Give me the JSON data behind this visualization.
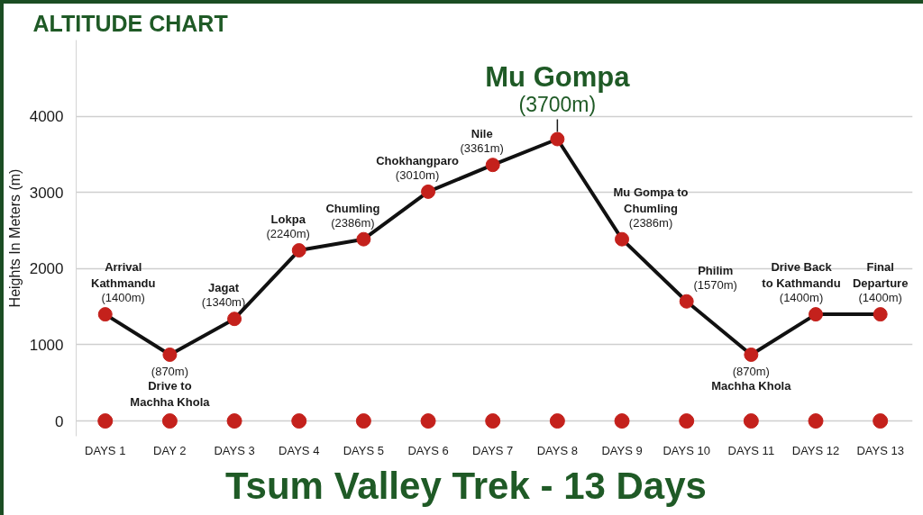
{
  "chart_data": {
    "type": "line",
    "title": "ALTITUDE CHART",
    "subtitle": "Tsum Valley Trek - 13 Days",
    "ylabel": "Heights In Meters (m)",
    "categories": [
      "DAYS 1",
      "DAY 2",
      "DAYS 3",
      "DAYS 4",
      "DAYS 5",
      "DAYS 6",
      "DAYS 7",
      "DAYS 8",
      "DAYS 9",
      "DAYS 10",
      "DAYS 11",
      "DAYS 12",
      "DAYS 13"
    ],
    "series": [
      {
        "color": "#111111",
        "colors": [
          "#c4211c",
          "#c4211c",
          "#c4211c",
          "#c4211c",
          "#c4211c",
          "#c4211c",
          "#c4211c",
          "#c4211c",
          "#c4211c",
          "#c4211c",
          "#c4211c",
          "#c4211c",
          "#c4211c"
        ],
        "values": [
          1400,
          870,
          1340,
          2240,
          2386,
          3010,
          3361,
          3700,
          2386,
          1570,
          870,
          1400,
          1400
        ],
        "value_labels": [
          "(1400m)",
          "(870m)",
          "(1340m)",
          "(2240m)",
          "(2386m)",
          "(3010m)",
          "(3361m)",
          "(3700m)",
          "(2386m)",
          "(1570m)",
          "(870m)",
          "(1400m)",
          "(1400m)"
        ]
      },
      {
        "type": "scatter",
        "color": "#c4211c",
        "values": [
          0,
          0,
          0,
          0,
          0,
          0,
          0,
          0,
          0,
          0,
          0,
          0,
          0
        ]
      }
    ],
    "ylim": [
      -200,
      5000
    ],
    "yticks": [
      0,
      1000,
      2000,
      3000,
      4000
    ],
    "grid": "y",
    "marker": "circle",
    "line_style": "solid",
    "annotations": [
      {
        "text": "Arrival\nKathmandu",
        "x": "DAYS 1",
        "y": 1400
      },
      {
        "text": "Drive to\nMachha Khola",
        "x": "DAY 2",
        "y": 870
      },
      {
        "text": "Jagat",
        "x": "DAYS 3",
        "y": 1340
      },
      {
        "text": "Lokpa",
        "x": "DAYS 4",
        "y": 2240
      },
      {
        "text": "Chumling",
        "x": "DAYS 5",
        "y": 2386
      },
      {
        "text": "Chokhangparo",
        "x": "DAYS 6",
        "y": 3010
      },
      {
        "text": "Nile",
        "x": "DAYS 7",
        "y": 3361
      },
      {
        "text": "Mu Gompa",
        "x": "DAYS 8",
        "y": 3700
      },
      {
        "text": "Mu Gompa to\nChumling",
        "x": "DAYS 9",
        "y": 2386
      },
      {
        "text": "Philim",
        "x": "DAYS 10",
        "y": 1570
      },
      {
        "text": "Machha Khola",
        "x": "DAYS 11",
        "y": 870
      },
      {
        "text": "Drive Back\nto Kathmandu",
        "x": "DAYS 12",
        "y": 1400
      },
      {
        "text": "Final\nDeparture",
        "x": "DAYS 13",
        "y": 1400
      }
    ]
  }
}
